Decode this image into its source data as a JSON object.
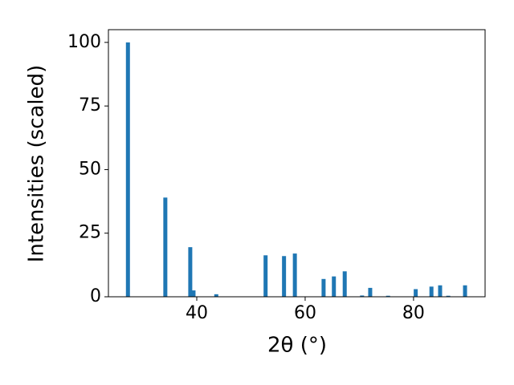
{
  "chart_data": {
    "type": "bar",
    "color": "#1f77b4",
    "x_label": "2θ (°)",
    "y_label": "Intensities (scaled)",
    "x": [
      27.3,
      34.2,
      38.8,
      39.4,
      43.6,
      52.7,
      56.1,
      58.1,
      63.4,
      65.3,
      67.3,
      70.5,
      72.0,
      75.3,
      80.4,
      83.3,
      84.9,
      86.4,
      89.5
    ],
    "values": [
      100,
      39,
      19.5,
      2.5,
      1,
      16.3,
      16,
      17,
      7,
      8,
      10,
      0.5,
      3.5,
      0.4,
      3,
      4,
      4.5,
      0.4,
      4.5
    ],
    "xlim": [
      23.7,
      93.2
    ],
    "ylim": [
      0,
      105
    ],
    "xticks": [
      40,
      60,
      80
    ],
    "yticks": [
      0,
      25,
      50,
      75,
      100
    ],
    "grid": false
  }
}
